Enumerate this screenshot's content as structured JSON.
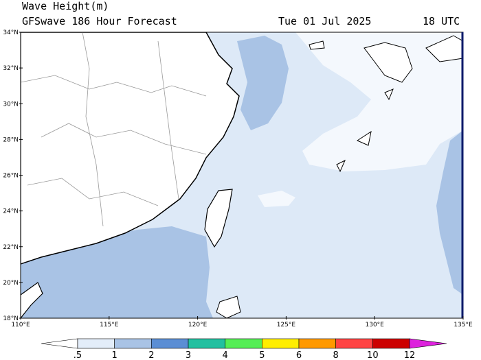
{
  "header": {
    "title": "Wave Height(m)",
    "model": "GFSwave 186 Hour Forecast",
    "date": "Tue 01 Jul 2025",
    "time": "18 UTC"
  },
  "map": {
    "lat_labels": [
      "34°N",
      "32°N",
      "30°N",
      "28°N",
      "26°N",
      "24°N",
      "22°N",
      "20°N",
      "18°N"
    ],
    "lon_labels": [
      "110°E",
      "115°E",
      "120°E",
      "125°E",
      "130°E",
      "135°E"
    ]
  },
  "colorbar": {
    "labels": [
      ".5",
      "1",
      "2",
      "3",
      "4",
      "5",
      "6",
      "8",
      "10",
      "12"
    ],
    "colors": [
      "#ffffff",
      "#e3edf9",
      "#a9c3e5",
      "#5b8ed4",
      "#22c0a0",
      "#55ee55",
      "#ffee00",
      "#ff9900",
      "#ff4444",
      "#cc0000",
      "#dd22dd"
    ]
  }
}
